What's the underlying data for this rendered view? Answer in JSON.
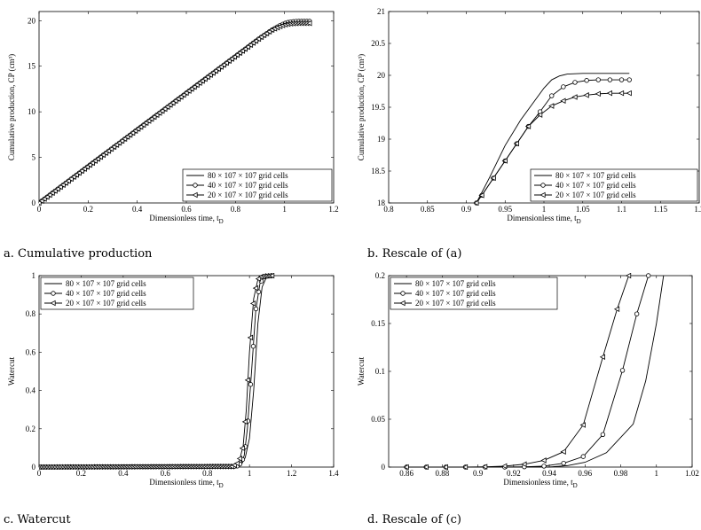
{
  "legend_entries": [
    "80 × 107 × 107 grid cells",
    "40 × 107 × 107 grid cells",
    "20 × 107 × 107 grid cells"
  ],
  "legend_markers": [
    "none",
    "circle",
    "triangle-left"
  ],
  "chart_data": [
    {
      "type": "line",
      "caption": "a. Cumulative production",
      "xlabel": "Dimensionless time, t_D",
      "ylabel": "Cumulative production, CP (cm³)",
      "xlim": [
        0,
        1.2
      ],
      "ylim": [
        0,
        21
      ],
      "xticks": [
        0,
        0.2,
        0.4,
        0.6,
        0.8,
        1,
        1.2
      ],
      "yticks": [
        0,
        5,
        10,
        15,
        20
      ],
      "xtick_labels": [
        "0",
        "0.2",
        "0.4",
        "0.6",
        "0.8",
        "1",
        "1.2"
      ],
      "ytick_labels": [
        "0",
        "5",
        "10",
        "15",
        "20"
      ],
      "legend_position": "bottom-right",
      "dense_markers": true,
      "series": [
        {
          "name": "80 × 107 × 107 grid cells",
          "marker": "none",
          "x": [
            0,
            0.9,
            0.95,
            0.98,
            1.0,
            1.02,
            1.05,
            1.11
          ],
          "y": [
            0,
            18.1,
            19.0,
            19.5,
            19.8,
            19.95,
            20.03,
            20.03
          ]
        },
        {
          "name": "40 × 107 × 107 grid cells",
          "marker": "circle",
          "x": [
            0,
            0.9,
            0.95,
            0.98,
            1.0,
            1.02,
            1.05,
            1.11
          ],
          "y": [
            0,
            18.1,
            19.0,
            19.45,
            19.7,
            19.85,
            19.93,
            19.93
          ]
        },
        {
          "name": "20 × 107 × 107 grid cells",
          "marker": "triangle-left",
          "x": [
            0,
            0.9,
            0.95,
            0.98,
            1.0,
            1.02,
            1.05,
            1.11
          ],
          "y": [
            0,
            18.1,
            19.0,
            19.35,
            19.55,
            19.65,
            19.71,
            19.72
          ]
        }
      ]
    },
    {
      "type": "line",
      "caption": "b. Rescale of (a)",
      "xlabel": "Dimensionless time, t_D",
      "ylabel": "Cumulative production, CP (cm³)",
      "xlim": [
        0.8,
        1.2
      ],
      "ylim": [
        18,
        21
      ],
      "xticks": [
        0.8,
        0.85,
        0.9,
        0.95,
        1,
        1.05,
        1.1,
        1.15,
        1.2
      ],
      "yticks": [
        18,
        18.5,
        19,
        19.5,
        20,
        20.5,
        21
      ],
      "xtick_labels": [
        "0.8",
        "0.85",
        "0.9",
        "0.95",
        "1",
        "1.05",
        "1.1",
        "1.15",
        "1.2"
      ],
      "ytick_labels": [
        "18",
        "18.5",
        "19",
        "19.5",
        "20",
        "20.5",
        "21"
      ],
      "legend_position": "bottom-right",
      "series": [
        {
          "name": "80 × 107 × 107 grid cells",
          "marker": "none",
          "x": [
            0.913,
            0.93,
            0.95,
            0.97,
            0.985,
            1.0,
            1.01,
            1.02,
            1.03,
            1.05,
            1.08,
            1.11
          ],
          "y": [
            18.0,
            18.4,
            18.9,
            19.3,
            19.55,
            19.8,
            19.93,
            19.99,
            20.02,
            20.03,
            20.03,
            20.03
          ]
        },
        {
          "name": "40 × 107 × 107 grid cells",
          "marker": "circle",
          "x": [
            0.913,
            0.92,
            0.935,
            0.95,
            0.965,
            0.98,
            0.995,
            1.01,
            1.025,
            1.04,
            1.055,
            1.07,
            1.085,
            1.1,
            1.11
          ],
          "y": [
            18.0,
            18.12,
            18.39,
            18.66,
            18.93,
            19.2,
            19.43,
            19.68,
            19.82,
            19.89,
            19.92,
            19.93,
            19.93,
            19.93,
            19.93
          ]
        },
        {
          "name": "20 × 107 × 107 grid cells",
          "marker": "triangle-left",
          "x": [
            0.913,
            0.92,
            0.935,
            0.95,
            0.965,
            0.98,
            0.995,
            1.01,
            1.025,
            1.04,
            1.055,
            1.07,
            1.085,
            1.1,
            1.11
          ],
          "y": [
            18.0,
            18.12,
            18.39,
            18.66,
            18.93,
            19.2,
            19.38,
            19.52,
            19.6,
            19.66,
            19.69,
            19.71,
            19.72,
            19.72,
            19.72
          ]
        }
      ]
    },
    {
      "type": "line",
      "caption": "c. Watercut",
      "xlabel": "Dimensionless time, t_D",
      "ylabel": "Watercut",
      "xlim": [
        0,
        1.4
      ],
      "ylim": [
        0,
        1
      ],
      "xticks": [
        0,
        0.2,
        0.4,
        0.6,
        0.8,
        1,
        1.2,
        1.4
      ],
      "yticks": [
        0,
        0.2,
        0.4,
        0.6,
        0.8,
        1
      ],
      "xtick_labels": [
        "0",
        "0.2",
        "0.4",
        "0.6",
        "0.8",
        "1",
        "1.2",
        "1.4"
      ],
      "ytick_labels": [
        "0",
        "0.2",
        "0.4",
        "0.6",
        "0.8",
        "1"
      ],
      "legend_position": "top-left",
      "dense_markers": true,
      "series": [
        {
          "name": "80 × 107 × 107 grid cells",
          "marker": "none",
          "x": [
            0,
            0.94,
            0.96,
            0.98,
            1.0,
            1.02,
            1.04,
            1.06,
            1.08,
            1.11
          ],
          "y": [
            0,
            0.002,
            0.01,
            0.05,
            0.15,
            0.4,
            0.75,
            0.94,
            0.99,
            1.0
          ]
        },
        {
          "name": "40 × 107 × 107 grid cells",
          "marker": "circle",
          "x": [
            0,
            0.94,
            0.96,
            0.975,
            0.99,
            1.01,
            1.03,
            1.05,
            1.07,
            1.11
          ],
          "y": [
            0,
            0.004,
            0.02,
            0.06,
            0.2,
            0.5,
            0.82,
            0.96,
            0.995,
            1.0
          ]
        },
        {
          "name": "20 × 107 × 107 grid cells",
          "marker": "triangle-left",
          "x": [
            0,
            0.92,
            0.95,
            0.97,
            0.985,
            1.0,
            1.02,
            1.04,
            1.06,
            1.11
          ],
          "y": [
            0,
            0.003,
            0.025,
            0.11,
            0.3,
            0.6,
            0.88,
            0.98,
            0.998,
            1.0
          ]
        }
      ]
    },
    {
      "type": "line",
      "caption": "d. Rescale of (c)",
      "xlabel": "Dimensionless time, t_D",
      "ylabel": "Watercut",
      "xlim": [
        0.85,
        1.02
      ],
      "ylim": [
        0,
        0.2
      ],
      "xticks": [
        0.86,
        0.88,
        0.9,
        0.92,
        0.94,
        0.96,
        0.98,
        1,
        1.02
      ],
      "yticks": [
        0,
        0.05,
        0.1,
        0.15,
        0.2
      ],
      "xtick_labels": [
        "0.86",
        "0.88",
        "0.9",
        "0.92",
        "0.94",
        "0.96",
        "0.98",
        "1",
        "1.02"
      ],
      "ytick_labels": [
        "0",
        "0.05",
        "0.1",
        "0.15",
        "0.2"
      ],
      "legend_position": "top-left",
      "series": [
        {
          "name": "80 × 107 × 107 grid cells",
          "marker": "none",
          "x": [
            0.86,
            0.94,
            0.95,
            0.96,
            0.972,
            0.987,
            0.994,
            1.0,
            1.004
          ],
          "y": [
            0,
            0,
            0.0015,
            0.005,
            0.015,
            0.045,
            0.09,
            0.15,
            0.2
          ]
        },
        {
          "name": "40 × 107 × 107 grid cells",
          "marker": "circle",
          "x": [
            0.86,
            0.871,
            0.882,
            0.893,
            0.904,
            0.915,
            0.926,
            0.937,
            0.948,
            0.959,
            0.97,
            0.981,
            0.989,
            0.9955
          ],
          "y": [
            0,
            0,
            0,
            0,
            0,
            0,
            0.0003,
            0.001,
            0.004,
            0.011,
            0.034,
            0.101,
            0.16,
            0.2
          ]
        },
        {
          "name": "20 × 107 × 107 grid cells",
          "marker": "triangle-left",
          "x": [
            0.86,
            0.871,
            0.882,
            0.893,
            0.904,
            0.915,
            0.926,
            0.937,
            0.948,
            0.959,
            0.97,
            0.978,
            0.9845
          ],
          "y": [
            0,
            0,
            0,
            0,
            0.0003,
            0.001,
            0.003,
            0.007,
            0.016,
            0.044,
            0.115,
            0.165,
            0.2
          ]
        }
      ]
    }
  ]
}
